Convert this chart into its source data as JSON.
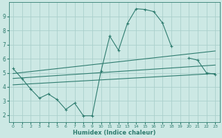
{
  "xlabel": "Humidex (Indice chaleur)",
  "x_values": [
    0,
    1,
    2,
    3,
    4,
    5,
    6,
    7,
    8,
    9,
    10,
    11,
    12,
    13,
    14,
    15,
    16,
    17,
    18,
    19,
    20,
    21,
    22,
    23
  ],
  "main_line_y": [
    5.3,
    4.6,
    3.85,
    3.2,
    3.5,
    3.1,
    2.4,
    2.85,
    1.95,
    1.95,
    5.1,
    7.6,
    6.6,
    8.5,
    9.55,
    9.5,
    9.35,
    8.55,
    6.9,
    null,
    6.05,
    5.9,
    5.0,
    4.9
  ],
  "trend1_x": [
    0,
    23
  ],
  "trend1_y": [
    4.95,
    6.55
  ],
  "trend2_x": [
    0,
    23
  ],
  "trend2_y": [
    4.6,
    5.55
  ],
  "trend3_x": [
    0,
    23
  ],
  "trend3_y": [
    4.15,
    4.95
  ],
  "line_color": "#2d7b6e",
  "bg_color": "#cce8e4",
  "grid_color": "#aacfcb",
  "ylim": [
    1.5,
    10.0
  ],
  "xlim": [
    -0.5,
    23.5
  ],
  "yticks": [
    2,
    3,
    4,
    5,
    6,
    7,
    8,
    9
  ],
  "xticks": [
    0,
    1,
    2,
    3,
    4,
    5,
    6,
    7,
    8,
    9,
    10,
    11,
    12,
    13,
    14,
    15,
    16,
    17,
    18,
    19,
    20,
    21,
    22,
    23
  ]
}
